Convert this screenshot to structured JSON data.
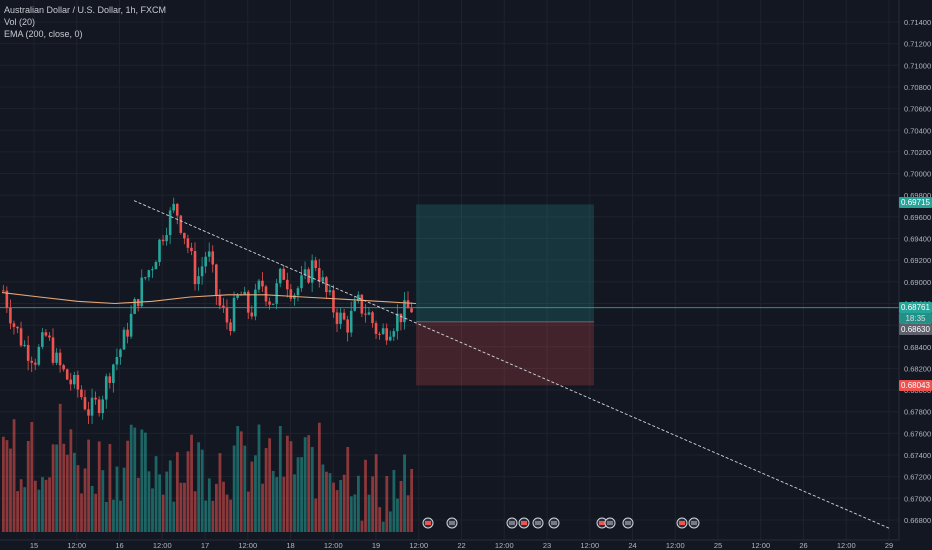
{
  "legend": {
    "symbol": "Australian Dollar / U.S. Dollar, 1h, FXCM",
    "volume": "Vol (20)",
    "ema": "EMA (200, close, 0)"
  },
  "colors": {
    "background": "#131722",
    "grid": "#1e222d",
    "up": "#26a69a",
    "down": "#ef5350",
    "ema": "#e8a877",
    "target_zone": "#26a69a",
    "stop_zone": "#ef5350",
    "trendline": "#d1d4dc"
  },
  "price_labels": {
    "target": "0.69715",
    "current": "0.68761",
    "countdown": "18:35",
    "entry": "0.68630",
    "stop": "0.68043"
  },
  "chart_data": {
    "type": "candlestick",
    "title": "Australian Dollar / U.S. Dollar, 1h, FXCM",
    "x_ticks": [
      "15",
      "12:00",
      "16",
      "12:00",
      "17",
      "12:00",
      "18",
      "12:00",
      "19",
      "12:00",
      "22",
      "12:00",
      "23",
      "12:00",
      "24",
      "12:00",
      "25",
      "12:00",
      "26",
      "12:00",
      "29"
    ],
    "y_ticks": [
      "0.71400",
      "0.71200",
      "0.71000",
      "0.70800",
      "0.70600",
      "0.70400",
      "0.70200",
      "0.70000",
      "0.69800",
      "0.69600",
      "0.69400",
      "0.69200",
      "0.69000",
      "0.68800",
      "0.68600",
      "0.68400",
      "0.68200",
      "0.68000",
      "0.67800",
      "0.67600",
      "0.67400",
      "0.67200",
      "0.67000",
      "0.66800"
    ],
    "ylim": [
      0.6672,
      0.7152
    ],
    "grid": true,
    "candle_closes_approx": [
      0.6892,
      0.686,
      0.684,
      0.683,
      0.685,
      0.6825,
      0.681,
      0.68,
      0.678,
      0.679,
      0.682,
      0.684,
      0.687,
      0.69,
      0.692,
      0.695,
      0.697,
      0.694,
      0.69,
      0.693,
      0.688,
      0.686,
      0.689,
      0.687,
      0.69,
      0.688,
      0.691,
      0.689,
      0.69,
      0.692,
      0.689,
      0.687,
      0.686,
      0.688,
      0.687,
      0.685,
      0.686,
      0.687,
      0.6876
    ],
    "ema_200_approx": [
      0.689,
      0.6886,
      0.6882,
      0.688,
      0.6882,
      0.6886,
      0.6888,
      0.6888,
      0.6886,
      0.6884,
      0.6882,
      0.688
    ],
    "trendline": {
      "from": [
        "16",
        0.6975
      ],
      "to": [
        "29",
        0.6672
      ]
    },
    "position": {
      "type": "long",
      "entry": 0.6863,
      "target": 0.69715,
      "stop": 0.68043
    },
    "current_price": 0.68761
  }
}
